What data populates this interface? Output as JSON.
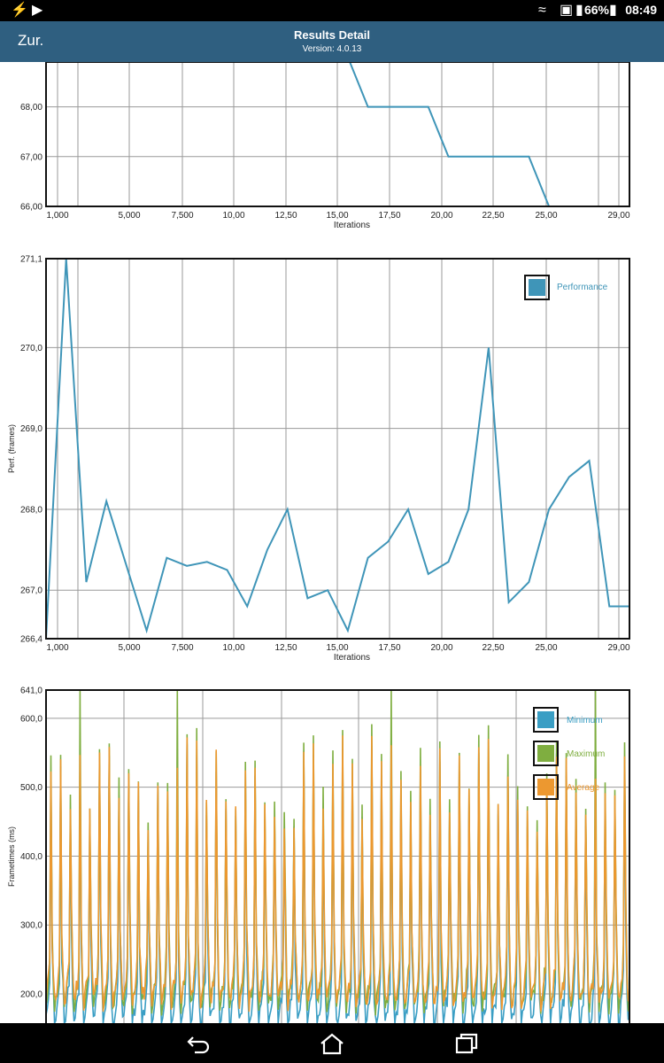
{
  "status_bar": {
    "left_icons": [
      "flash-icon",
      "play-icon"
    ],
    "right_icons": [
      "wifi-icon",
      "data-saver-icon",
      "vibrate-icon"
    ],
    "battery": "66%",
    "time": "08:49"
  },
  "app_bar": {
    "back_label": "Zur.",
    "title": "Results Detail",
    "version": "Version: 4.0.13"
  },
  "colors": {
    "app_bar": "#2f5f80",
    "minimum": "#3a9ec4",
    "maximum": "#7fae40",
    "average": "#ec9830",
    "performance": "#3f95b8"
  },
  "chart_data": [
    {
      "type": "line",
      "title": "",
      "xlabel": "Iterations",
      "ylabel": "",
      "x_ticks": [
        "1,000",
        "5,000",
        "7,500",
        "10,00",
        "12,50",
        "15,00",
        "17,50",
        "20,00",
        "22,50",
        "25,00",
        "29,00"
      ],
      "y_ticks": [
        "68,00",
        "67,00",
        "66,00"
      ],
      "ylim": [
        66,
        68.9
      ],
      "series": [
        {
          "x": [
            16,
            17,
            18,
            19,
            20,
            21,
            22,
            23,
            24,
            25,
            26,
            27,
            28,
            29,
            30
          ],
          "values": [
            69,
            68,
            68,
            68,
            68,
            67,
            67,
            67,
            67,
            67,
            66,
            66,
            66,
            66,
            66
          ]
        }
      ]
    },
    {
      "type": "line",
      "title": "",
      "xlabel": "Iterations",
      "ylabel": "Perf. (frames)",
      "x_ticks": [
        "1,000",
        "5,000",
        "7,500",
        "10,00",
        "12,50",
        "15,00",
        "17,50",
        "20,00",
        "22,50",
        "25,00",
        "29,00"
      ],
      "y_ticks": [
        "271,1",
        "270,0",
        "269,0",
        "268,0",
        "267,0",
        "266,4"
      ],
      "ylim": [
        266.4,
        271.1
      ],
      "legend": [
        "Performance"
      ],
      "series": [
        {
          "name": "Performance",
          "x": [
            1,
            2,
            3,
            4,
            5,
            6,
            7,
            8,
            9,
            10,
            11,
            12,
            13,
            14,
            15,
            16,
            17,
            18,
            19,
            20,
            21,
            22,
            23,
            24,
            25,
            26,
            27,
            28,
            29,
            30
          ],
          "values": [
            266.4,
            271.1,
            267.1,
            268.1,
            267.3,
            266.5,
            267.4,
            267.3,
            267.35,
            267.25,
            266.8,
            267.5,
            268.0,
            266.9,
            267.0,
            266.5,
            267.4,
            267.6,
            268.0,
            267.2,
            267.35,
            268.0,
            270.0,
            266.85,
            267.1,
            268.0,
            268.4,
            268.6,
            266.8,
            266.8
          ]
        }
      ]
    },
    {
      "type": "line",
      "title": "",
      "xlabel": "",
      "ylabel": "Frametimes (ms)",
      "y_ticks": [
        "641,0",
        "600,0",
        "500,0",
        "400,0",
        "300,0",
        "200,0"
      ],
      "ylim": [
        110,
        641
      ],
      "legend": [
        "Minimum",
        "Maximum",
        "Average"
      ],
      "cycles": 60,
      "series": [
        {
          "name": "Minimum",
          "base": 150,
          "peak": 540
        },
        {
          "name": "Maximum",
          "base": 175,
          "peak": 570
        },
        {
          "name": "Average",
          "base": 180,
          "peak": 555
        }
      ]
    }
  ]
}
